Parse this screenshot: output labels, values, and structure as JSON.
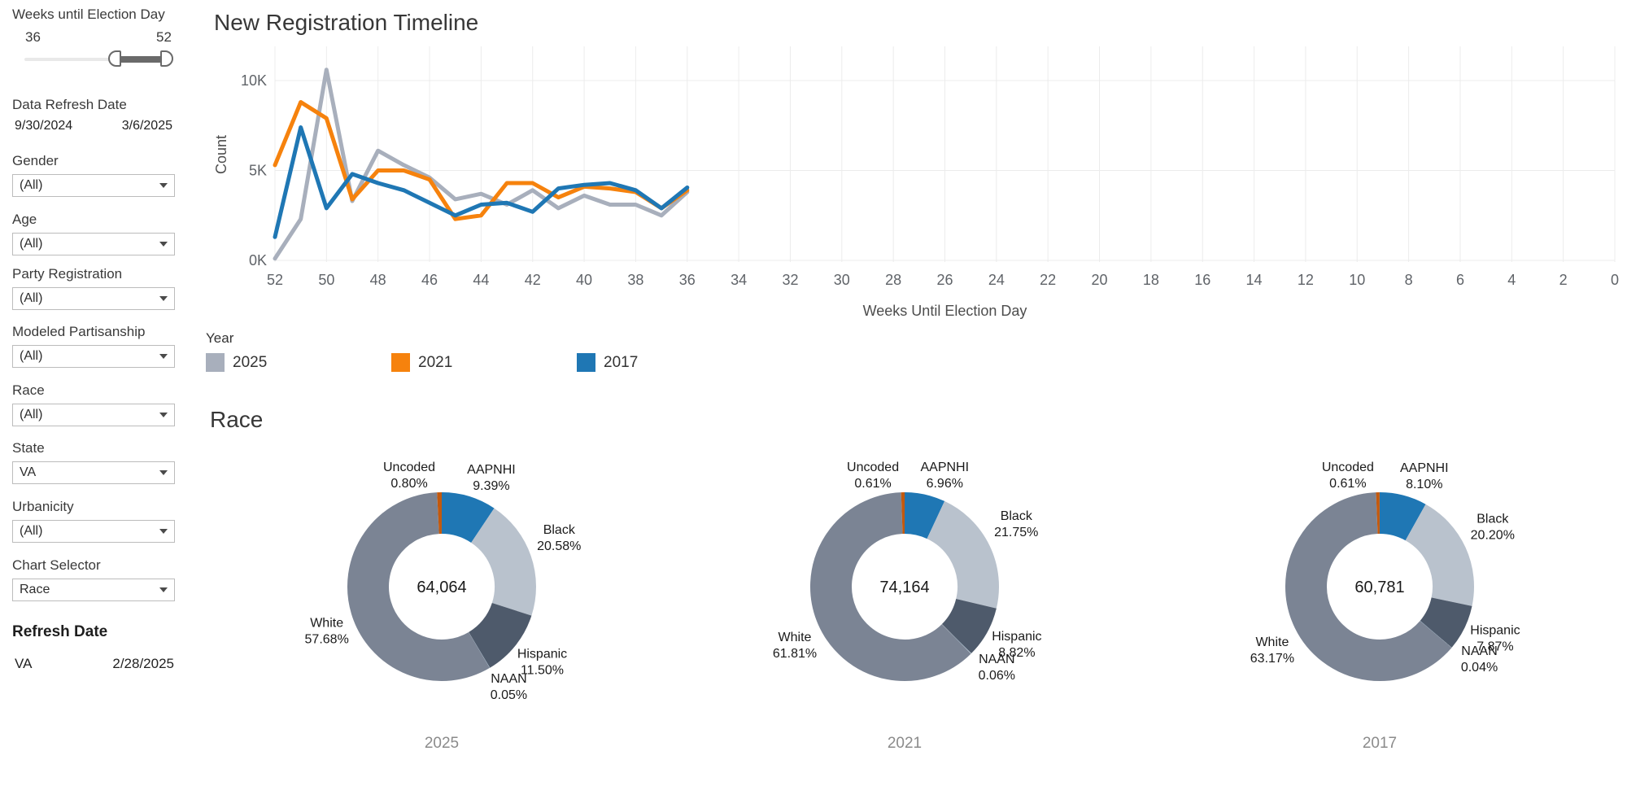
{
  "sidebar": {
    "weeks_filter": {
      "label": "Weeks until Election Day",
      "min": "36",
      "max": "52"
    },
    "data_refresh": {
      "label": "Data Refresh Date",
      "start": "9/30/2024",
      "end": "3/6/2025"
    },
    "filters": [
      {
        "label": "Gender",
        "value": "(All)"
      },
      {
        "label": "Age",
        "value": "(All)"
      },
      {
        "label": "Party Registration",
        "value": "(All)"
      },
      {
        "label": "Modeled Partisanship",
        "value": "(All)"
      },
      {
        "label": "Race",
        "value": "(All)"
      },
      {
        "label": "State",
        "value": "VA"
      },
      {
        "label": "Urbanicity",
        "value": "(All)"
      },
      {
        "label": "Chart Selector",
        "value": "Race"
      }
    ],
    "refresh": {
      "label": "Refresh Date",
      "state": "VA",
      "date": "2/28/2025"
    }
  },
  "timeline_title": "New Registration Timeline",
  "race_title": "Race",
  "legend": {
    "title": "Year",
    "items": [
      {
        "label": "2025",
        "color": "#A8AFBC"
      },
      {
        "label": "2021",
        "color": "#F6820D"
      },
      {
        "label": "2017",
        "color": "#1F77B4"
      }
    ]
  },
  "chart_data": [
    {
      "type": "line",
      "title": "New Registration Timeline",
      "xlabel": "Weeks Until Election Day",
      "ylabel": "Count",
      "x": [
        52,
        51,
        50,
        49,
        48,
        47,
        46,
        45,
        44,
        43,
        42,
        41,
        40,
        39,
        38,
        37,
        36
      ],
      "x_axis_range": [
        52,
        0
      ],
      "x_ticks": [
        52,
        50,
        48,
        46,
        44,
        42,
        40,
        38,
        36,
        34,
        32,
        30,
        28,
        26,
        24,
        22,
        20,
        18,
        16,
        14,
        12,
        10,
        8,
        6,
        4,
        2,
        0
      ],
      "y_ticks": [
        {
          "value": 0,
          "label": "0K"
        },
        {
          "value": 5000,
          "label": "5K"
        },
        {
          "value": 10000,
          "label": "10K"
        }
      ],
      "ylim": [
        0,
        11600
      ],
      "grid": true,
      "legend_position": "bottom",
      "series": [
        {
          "name": "2025",
          "color": "#A8AFBC",
          "values": [
            100,
            2300,
            10600,
            3300,
            6100,
            5300,
            4600,
            3400,
            3700,
            3100,
            3900,
            2900,
            3600,
            3100,
            3100,
            2500,
            3800
          ]
        },
        {
          "name": "2021",
          "color": "#F6820D",
          "values": [
            5300,
            8800,
            7900,
            3400,
            5000,
            5000,
            4500,
            2300,
            2500,
            4300,
            4300,
            3500,
            4100,
            4000,
            3800,
            2900,
            3900
          ]
        },
        {
          "name": "2017",
          "color": "#1F77B4",
          "values": [
            1300,
            7400,
            2900,
            4800,
            4300,
            3900,
            3200,
            2500,
            3100,
            3200,
            2700,
            4000,
            4200,
            4300,
            3900,
            2900,
            4050
          ]
        }
      ]
    },
    {
      "type": "pie",
      "subtype": "donut",
      "caption": "2025",
      "center_total": "64,064",
      "slices": [
        {
          "label": "AAPNHI",
          "pct": 9.39,
          "pct_label": "9.39%",
          "color": "#1F77B4"
        },
        {
          "label": "Black",
          "pct": 20.58,
          "pct_label": "20.58%",
          "color": "#B9C2CD"
        },
        {
          "label": "Hispanic",
          "pct": 11.5,
          "pct_label": "11.50%",
          "color": "#4E5A6B"
        },
        {
          "label": "NAAN",
          "pct": 0.05,
          "pct_label": "0.05%",
          "color": "#9FB8CA"
        },
        {
          "label": "White",
          "pct": 57.68,
          "pct_label": "57.68%",
          "color": "#7B8494"
        },
        {
          "label": "Uncoded",
          "pct": 0.8,
          "pct_label": "0.80%",
          "color": "#C2590E"
        }
      ]
    },
    {
      "type": "pie",
      "subtype": "donut",
      "caption": "2021",
      "center_total": "74,164",
      "slices": [
        {
          "label": "AAPNHI",
          "pct": 6.96,
          "pct_label": "6.96%",
          "color": "#1F77B4"
        },
        {
          "label": "Black",
          "pct": 21.75,
          "pct_label": "21.75%",
          "color": "#B9C2CD"
        },
        {
          "label": "Hispanic",
          "pct": 8.82,
          "pct_label": "8.82%",
          "color": "#4E5A6B"
        },
        {
          "label": "NAAN",
          "pct": 0.06,
          "pct_label": "0.06%",
          "color": "#9FB8CA"
        },
        {
          "label": "White",
          "pct": 61.81,
          "pct_label": "61.81%",
          "color": "#7B8494"
        },
        {
          "label": "Uncoded",
          "pct": 0.61,
          "pct_label": "0.61%",
          "color": "#C2590E"
        }
      ]
    },
    {
      "type": "pie",
      "subtype": "donut",
      "caption": "2017",
      "center_total": "60,781",
      "slices": [
        {
          "label": "AAPNHI",
          "pct": 8.1,
          "pct_label": "8.10%",
          "color": "#1F77B4"
        },
        {
          "label": "Black",
          "pct": 20.2,
          "pct_label": "20.20%",
          "color": "#B9C2CD"
        },
        {
          "label": "Hispanic",
          "pct": 7.87,
          "pct_label": "7.87%",
          "color": "#4E5A6B"
        },
        {
          "label": "NAAN",
          "pct": 0.04,
          "pct_label": "0.04%",
          "color": "#9FB8CA"
        },
        {
          "label": "White",
          "pct": 63.17,
          "pct_label": "63.17%",
          "color": "#7B8494"
        },
        {
          "label": "Uncoded",
          "pct": 0.61,
          "pct_label": "0.61%",
          "color": "#C2590E"
        }
      ]
    }
  ]
}
